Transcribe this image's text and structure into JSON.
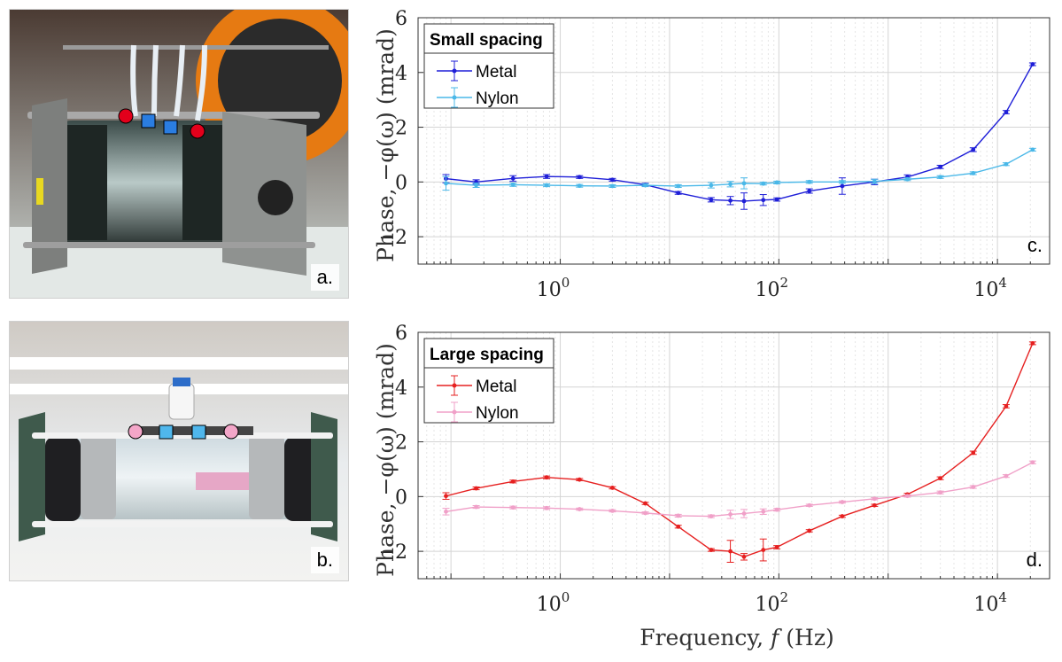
{
  "photos": {
    "a": {
      "letter": "a.",
      "frame_color": "#8a8a8a",
      "bench_color": "#e6ecea"
    },
    "b": {
      "letter": "b.",
      "frame_color": "#3f5a4c",
      "bench_color": "#f4f4f2"
    }
  },
  "markers": {
    "current_color": "#e3001b",
    "potential_color": "#2a7de1",
    "current_color_b": "#f3a6c8",
    "potential_color_b": "#4fb7ec"
  },
  "xlabel_parts": [
    "Frequency, ",
    "f",
    " (Hz)"
  ],
  "ylabel": "Phase, −φ(ω)  (mrad)",
  "chart_data": [
    {
      "type": "line",
      "panel_letter": "c.",
      "legend_title": "Small spacing",
      "legend_position": "top-left",
      "x_scale": "log",
      "xlim": [
        0.05,
        30000
      ],
      "ylim": [
        -3,
        6
      ],
      "yticks": [
        -2,
        0,
        2,
        4,
        6
      ],
      "xtick_labels": [
        "10^0",
        "10^2",
        "10^4"
      ],
      "grid": true,
      "x": [
        0.09,
        0.17,
        0.37,
        0.75,
        1.5,
        3,
        6,
        12,
        24,
        36,
        48,
        72,
        96,
        190,
        380,
        750,
        1500,
        3000,
        6000,
        12000,
        21000
      ],
      "series": [
        {
          "name": "Metal",
          "color": "#1f1fd8",
          "values": [
            0.12,
            0.0,
            0.13,
            0.2,
            0.18,
            0.08,
            -0.1,
            -0.4,
            -0.65,
            -0.68,
            -0.7,
            -0.66,
            -0.64,
            -0.33,
            -0.15,
            0.0,
            0.18,
            0.55,
            1.18,
            2.55,
            4.3
          ],
          "errors": [
            0.15,
            0.08,
            0.1,
            0.07,
            0.05,
            0.05,
            0.05,
            0.05,
            0.08,
            0.15,
            0.3,
            0.2,
            0.06,
            0.08,
            0.3,
            0.1,
            0.08,
            0.06,
            0.07,
            0.06,
            0.05
          ]
        },
        {
          "name": "Nylon",
          "color": "#4ab8e8",
          "values": [
            -0.05,
            -0.12,
            -0.1,
            -0.12,
            -0.14,
            -0.15,
            -0.12,
            -0.15,
            -0.12,
            -0.08,
            -0.05,
            -0.06,
            -0.02,
            0.0,
            0.0,
            0.02,
            0.1,
            0.18,
            0.32,
            0.65,
            1.18
          ],
          "errors": [
            0.25,
            0.08,
            0.06,
            0.05,
            0.05,
            0.05,
            0.05,
            0.05,
            0.1,
            0.1,
            0.2,
            0.05,
            0.05,
            0.05,
            0.05,
            0.08,
            0.05,
            0.05,
            0.05,
            0.05,
            0.05
          ]
        }
      ]
    },
    {
      "type": "line",
      "panel_letter": "d.",
      "legend_title": "Large spacing",
      "legend_position": "top-left",
      "x_scale": "log",
      "xlim": [
        0.05,
        30000
      ],
      "ylim": [
        -3,
        6
      ],
      "yticks": [
        -2,
        0,
        2,
        4,
        6
      ],
      "xtick_labels": [
        "10^0",
        "10^2",
        "10^4"
      ],
      "grid": true,
      "x": [
        0.09,
        0.17,
        0.37,
        0.75,
        1.5,
        3,
        6,
        12,
        24,
        36,
        48,
        72,
        96,
        190,
        380,
        750,
        1500,
        3000,
        6000,
        12000,
        21000
      ],
      "series": [
        {
          "name": "Metal",
          "color": "#e62020",
          "values": [
            0.02,
            0.3,
            0.55,
            0.7,
            0.62,
            0.32,
            -0.25,
            -1.1,
            -1.95,
            -2.0,
            -2.2,
            -1.95,
            -1.85,
            -1.25,
            -0.72,
            -0.32,
            0.08,
            0.67,
            1.6,
            3.3,
            5.6
          ],
          "errors": [
            0.12,
            0.05,
            0.05,
            0.05,
            0.04,
            0.04,
            0.04,
            0.05,
            0.05,
            0.4,
            0.12,
            0.4,
            0.06,
            0.04,
            0.04,
            0.04,
            0.04,
            0.05,
            0.06,
            0.06,
            0.05
          ]
        },
        {
          "name": "Nylon",
          "color": "#f0a0c8",
          "values": [
            -0.55,
            -0.38,
            -0.4,
            -0.42,
            -0.46,
            -0.52,
            -0.6,
            -0.7,
            -0.72,
            -0.65,
            -0.62,
            -0.55,
            -0.48,
            -0.32,
            -0.2,
            -0.08,
            0.02,
            0.15,
            0.35,
            0.75,
            1.25
          ],
          "errors": [
            0.12,
            0.05,
            0.05,
            0.05,
            0.04,
            0.04,
            0.04,
            0.05,
            0.05,
            0.15,
            0.15,
            0.1,
            0.05,
            0.04,
            0.04,
            0.04,
            0.04,
            0.05,
            0.05,
            0.05,
            0.05
          ]
        }
      ]
    }
  ]
}
